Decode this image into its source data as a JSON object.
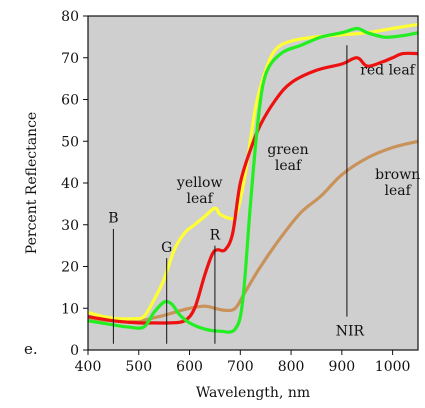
{
  "panel_letter": "e.",
  "chart_data": {
    "type": "line",
    "xlabel": "Wavelength, nm",
    "ylabel": "Percent Reflectance",
    "xlim": [
      400,
      1050
    ],
    "ylim": [
      0,
      80
    ],
    "xticks": [
      400,
      500,
      600,
      700,
      800,
      900,
      1000
    ],
    "yticks": [
      0,
      10,
      20,
      30,
      40,
      50,
      60,
      70,
      80
    ],
    "grid": false,
    "plot_background": "#cfcfcf",
    "band_markers": [
      {
        "label": "B",
        "x": 450,
        "y_top": 29
      },
      {
        "label": "G",
        "x": 555,
        "y_top": 22
      },
      {
        "label": "R",
        "x": 650,
        "y_top": 25
      },
      {
        "label": "NIR",
        "x": 910,
        "y_top": 73
      }
    ],
    "series": [
      {
        "name": "yellow leaf",
        "color": "#ffff33",
        "label_at": [
          620,
          39
        ],
        "points": [
          [
            400,
            9
          ],
          [
            430,
            8
          ],
          [
            460,
            7.5
          ],
          [
            490,
            7.5
          ],
          [
            510,
            8
          ],
          [
            530,
            12
          ],
          [
            550,
            17
          ],
          [
            570,
            24
          ],
          [
            590,
            28
          ],
          [
            610,
            30
          ],
          [
            630,
            32
          ],
          [
            650,
            34
          ],
          [
            660,
            32.5
          ],
          [
            680,
            31.5
          ],
          [
            690,
            32
          ],
          [
            700,
            36
          ],
          [
            715,
            46
          ],
          [
            730,
            58
          ],
          [
            750,
            67
          ],
          [
            770,
            72
          ],
          [
            800,
            74
          ],
          [
            850,
            75
          ],
          [
            900,
            75.5
          ],
          [
            950,
            76
          ],
          [
            1000,
            77
          ],
          [
            1050,
            78
          ]
        ]
      },
      {
        "name": "red leaf",
        "color": "#ee1111",
        "label_at": [
          990,
          66
        ],
        "points": [
          [
            400,
            8
          ],
          [
            450,
            7
          ],
          [
            500,
            6.5
          ],
          [
            530,
            6.5
          ],
          [
            560,
            6.5
          ],
          [
            590,
            7
          ],
          [
            610,
            10
          ],
          [
            630,
            18
          ],
          [
            645,
            23
          ],
          [
            655,
            24
          ],
          [
            670,
            24
          ],
          [
            685,
            28
          ],
          [
            700,
            40
          ],
          [
            720,
            48
          ],
          [
            740,
            54
          ],
          [
            770,
            60
          ],
          [
            800,
            64
          ],
          [
            850,
            67
          ],
          [
            900,
            68.5
          ],
          [
            930,
            70
          ],
          [
            950,
            68
          ],
          [
            980,
            69
          ],
          [
            1000,
            70
          ],
          [
            1020,
            71
          ],
          [
            1050,
            71
          ]
        ]
      },
      {
        "name": "green leaf",
        "color": "#22ee22",
        "label_at": [
          794,
          47
        ],
        "points": [
          [
            400,
            7
          ],
          [
            450,
            6
          ],
          [
            480,
            5.5
          ],
          [
            510,
            5.5
          ],
          [
            530,
            9
          ],
          [
            550,
            11.5
          ],
          [
            565,
            11
          ],
          [
            580,
            8.5
          ],
          [
            600,
            6.5
          ],
          [
            630,
            5
          ],
          [
            660,
            4.5
          ],
          [
            690,
            5
          ],
          [
            705,
            12
          ],
          [
            720,
            35
          ],
          [
            735,
            55
          ],
          [
            750,
            66
          ],
          [
            780,
            71
          ],
          [
            820,
            73
          ],
          [
            860,
            75
          ],
          [
            900,
            76
          ],
          [
            930,
            77
          ],
          [
            950,
            76
          ],
          [
            980,
            75
          ],
          [
            1000,
            75
          ],
          [
            1030,
            75.5
          ],
          [
            1050,
            76
          ]
        ]
      },
      {
        "name": "brown leaf",
        "color": "#c9925a",
        "label_at": [
          1010,
          41
        ],
        "points": [
          [
            400,
            7.5
          ],
          [
            450,
            7
          ],
          [
            500,
            7
          ],
          [
            540,
            8
          ],
          [
            570,
            9
          ],
          [
            600,
            10
          ],
          [
            630,
            10.5
          ],
          [
            650,
            10
          ],
          [
            670,
            9.5
          ],
          [
            690,
            10
          ],
          [
            710,
            14
          ],
          [
            740,
            20
          ],
          [
            780,
            27
          ],
          [
            820,
            33
          ],
          [
            860,
            37
          ],
          [
            900,
            42
          ],
          [
            950,
            46
          ],
          [
            1000,
            48.5
          ],
          [
            1050,
            50
          ]
        ]
      }
    ]
  }
}
